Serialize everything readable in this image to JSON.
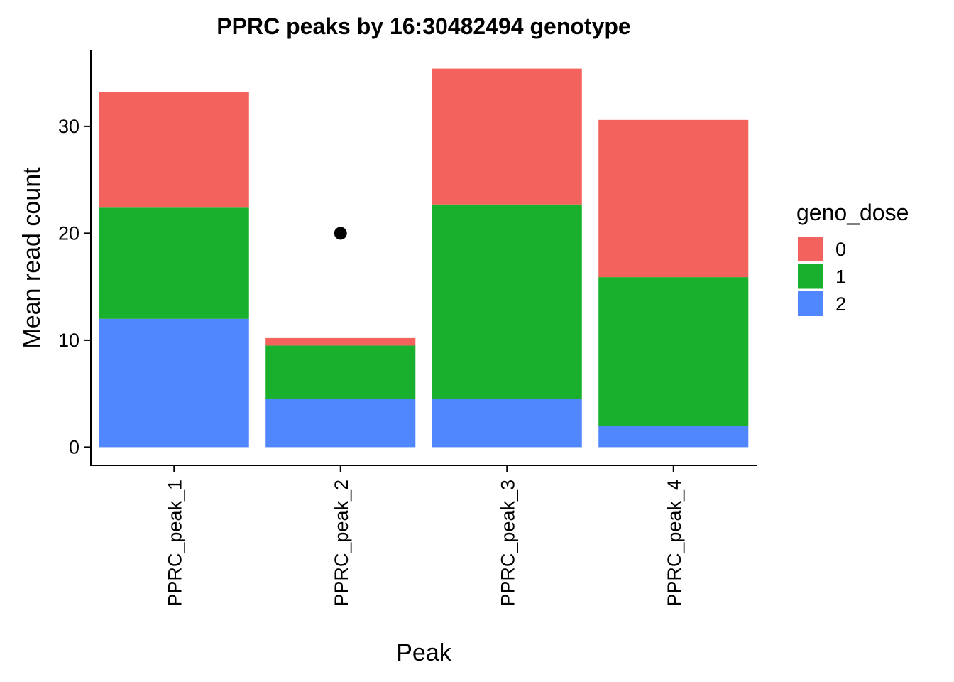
{
  "chart_data": {
    "type": "bar",
    "stacked": true,
    "title": "PPRC peaks by 16:30482494 genotype",
    "xlabel": "Peak",
    "ylabel": "Mean read count",
    "categories": [
      "PPRC_peak_1",
      "PPRC_peak_2",
      "PPRC_peak_3",
      "PPRC_peak_4"
    ],
    "ylim": [
      -1.7,
      37.1
    ],
    "yticks": [
      0,
      10,
      20,
      30
    ],
    "series": [
      {
        "name": "2",
        "color": "#5087ff",
        "values": [
          12.0,
          4.5,
          4.5,
          2.0
        ]
      },
      {
        "name": "1",
        "color": "#19b02d",
        "values": [
          10.4,
          5.0,
          18.2,
          13.9
        ]
      },
      {
        "name": "0",
        "color": "#f3625c",
        "values": [
          10.8,
          0.7,
          12.7,
          14.7
        ]
      }
    ],
    "annotations": [
      {
        "type": "point",
        "category": "PPRC_peak_2",
        "y": 20,
        "color": "#000000"
      }
    ],
    "legend": {
      "title": "geno_dose",
      "placement": "right",
      "entries": [
        {
          "label": "0",
          "color": "#f3625c"
        },
        {
          "label": "1",
          "color": "#19b02d"
        },
        {
          "label": "2",
          "color": "#5087ff"
        }
      ]
    },
    "grid": false
  }
}
